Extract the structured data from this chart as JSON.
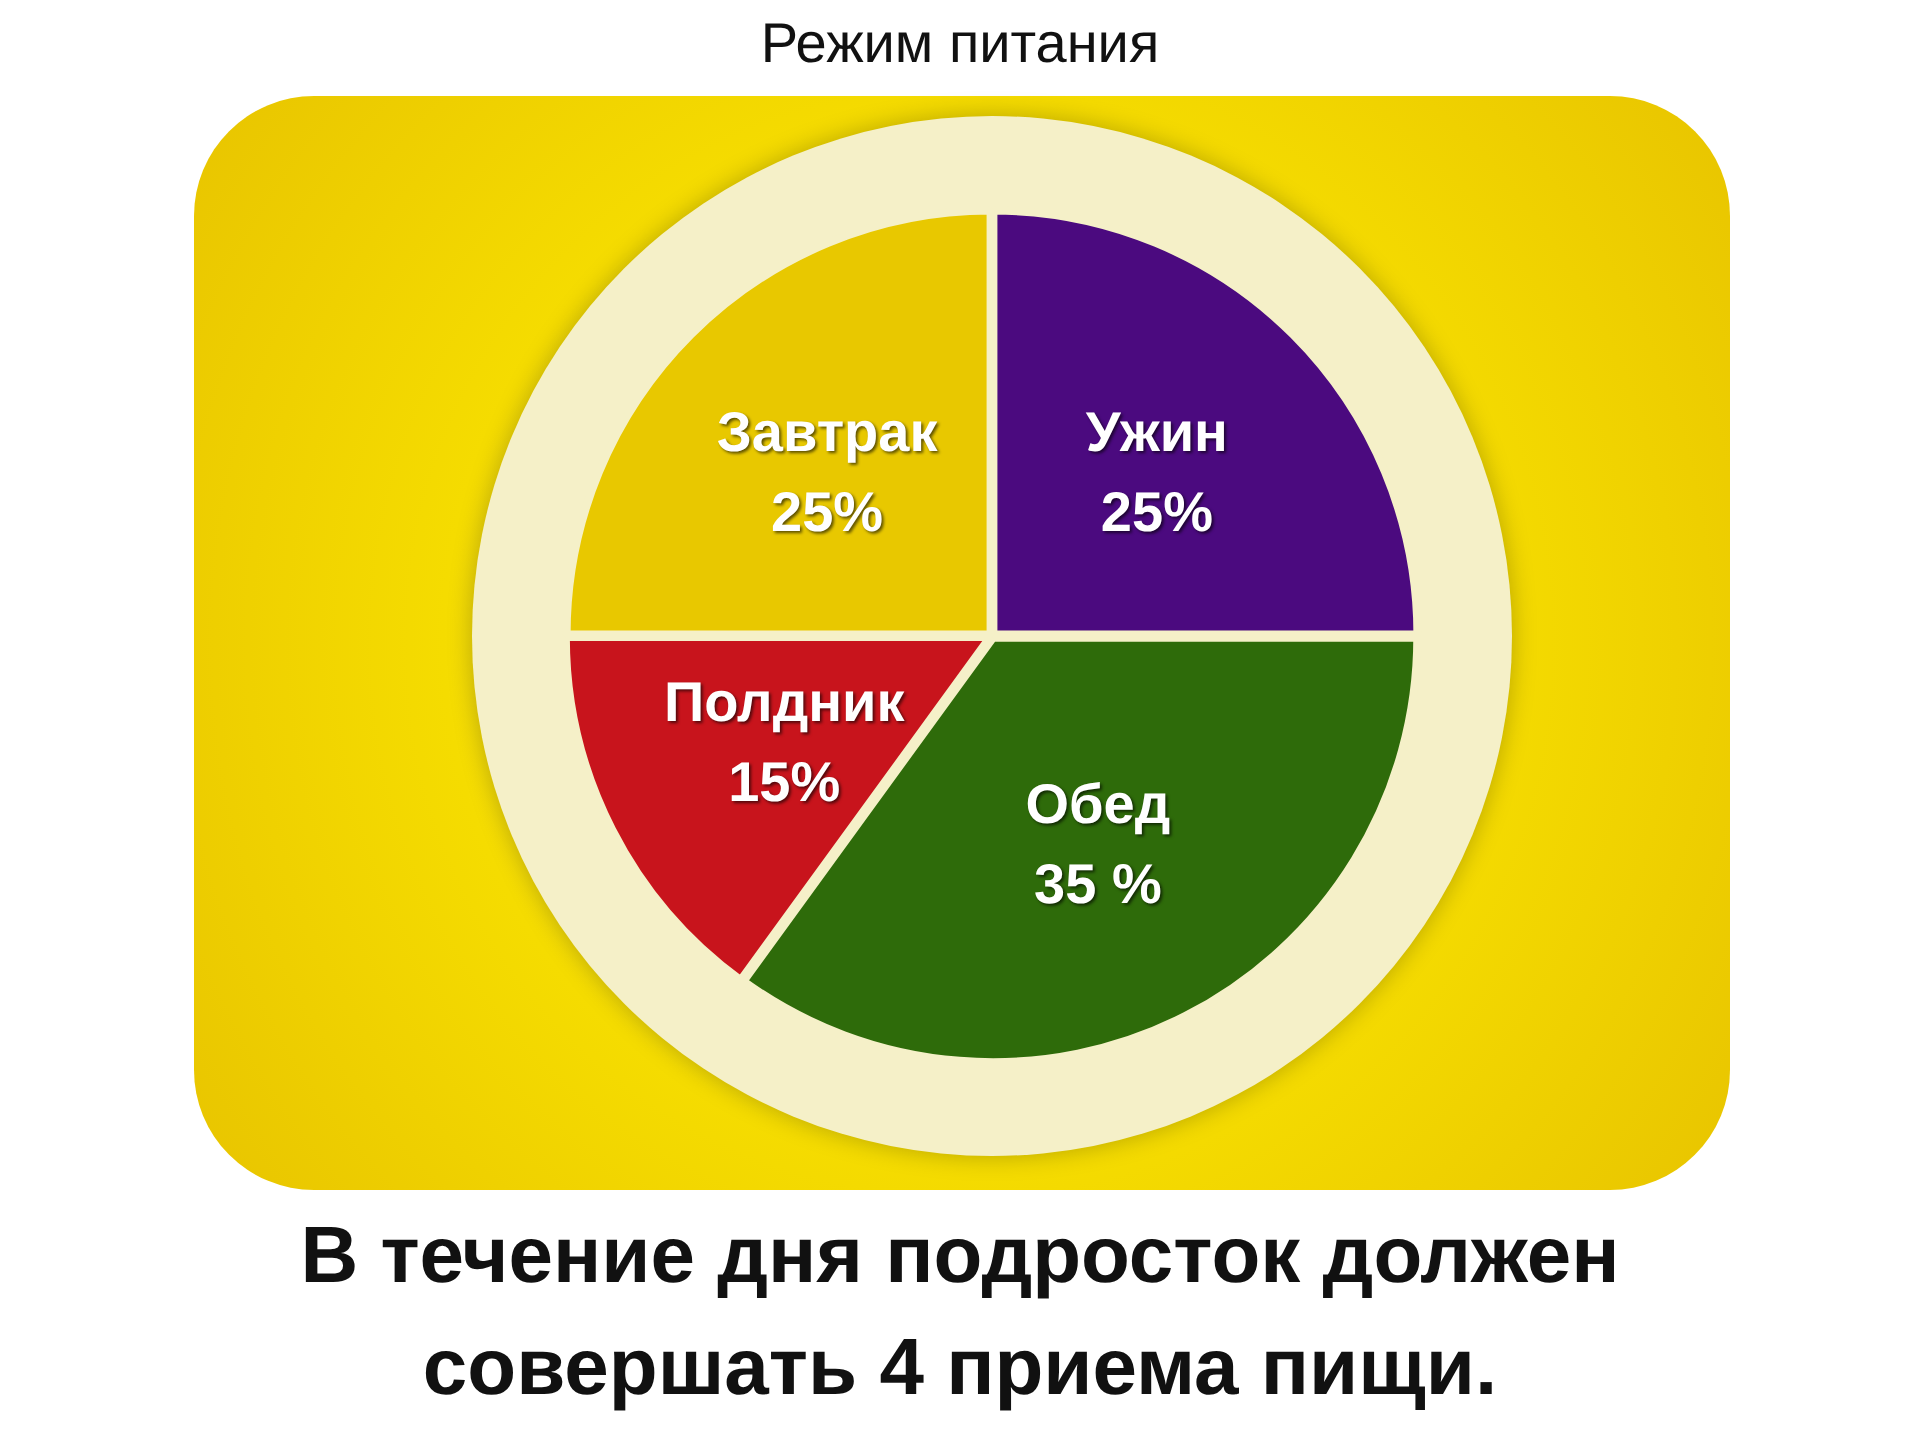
{
  "chart_data": {
    "type": "pie",
    "title": "Режим питания",
    "categories": [
      "Ужин",
      "Обед",
      "Полдник",
      "Завтрак"
    ],
    "values": [
      25,
      35,
      15,
      25
    ],
    "value_labels": [
      "25%",
      "35 %",
      "15%",
      "25%"
    ],
    "colors": [
      "#4b0a7f",
      "#2e6b0a",
      "#c8141c",
      "#e8c800"
    ],
    "legend": false,
    "annotations": [
      "В течение дня подросток должен совершать 4 приема пищи."
    ]
  }
}
